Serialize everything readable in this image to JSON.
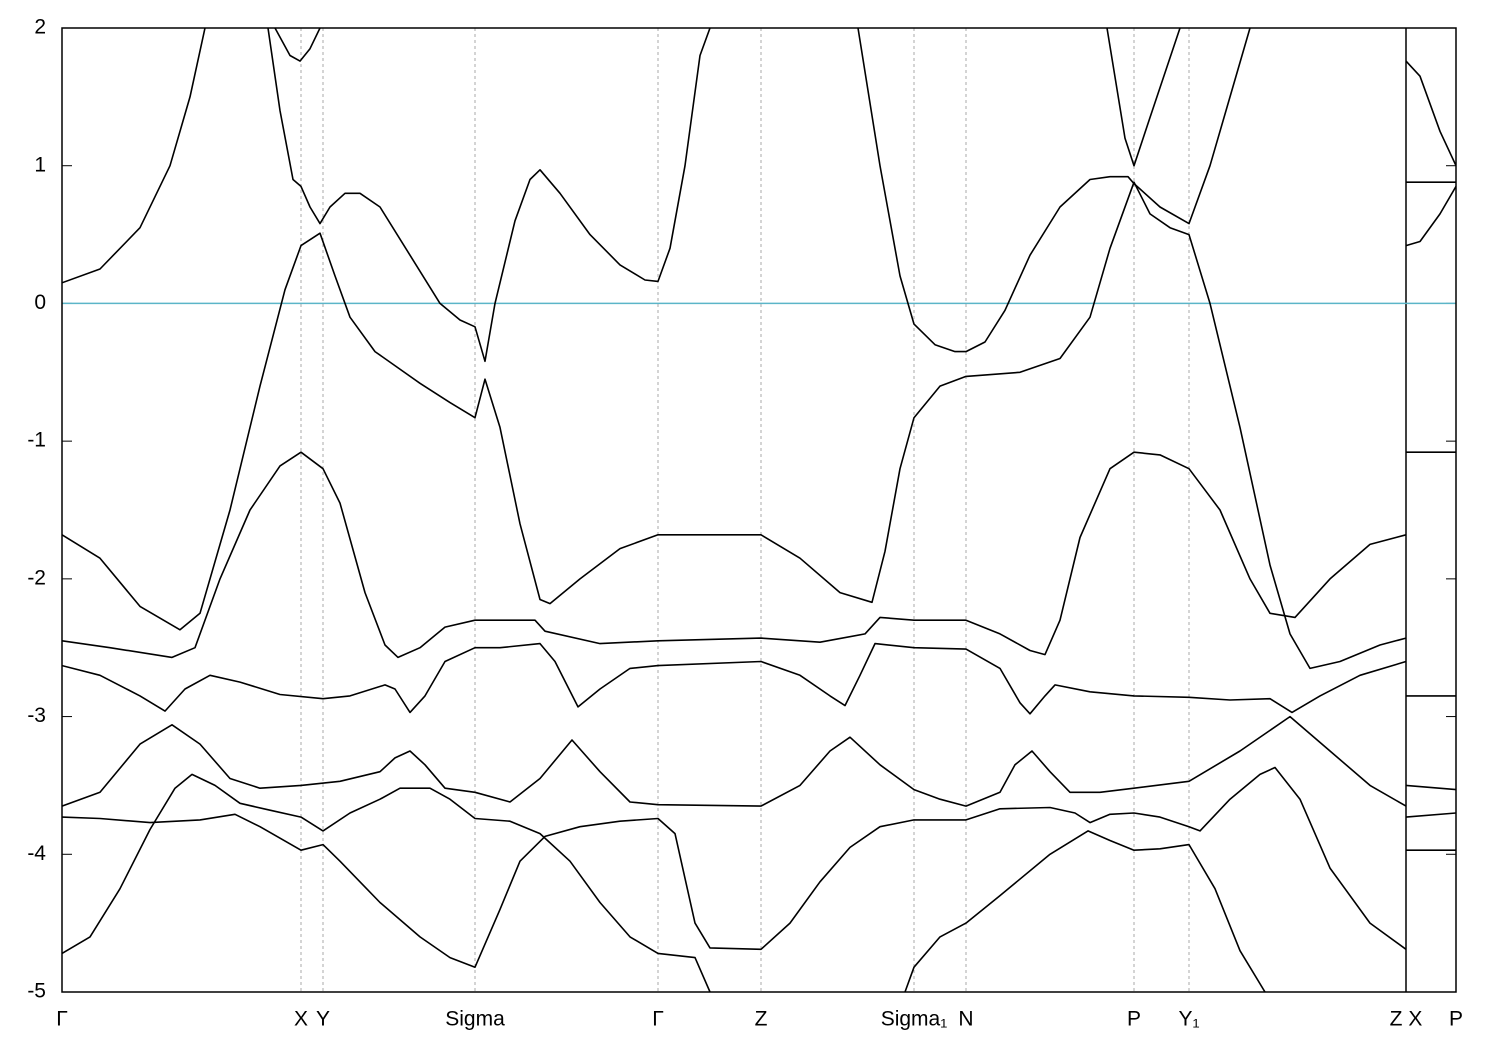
{
  "chart_data": {
    "type": "line",
    "xlim": [
      0,
      1394
    ],
    "ylim": [
      -5,
      2
    ],
    "yticks": [
      2,
      1,
      0,
      -1,
      -2,
      -3,
      -4,
      -5
    ],
    "xticks": [
      {
        "value": 0,
        "label": "Γ"
      },
      {
        "value": 239,
        "label": "X"
      },
      {
        "value": 261,
        "label": "Y"
      },
      {
        "value": 413,
        "label": "Sigma"
      },
      {
        "value": 596,
        "label": "Γ"
      },
      {
        "value": 699,
        "label": "Z"
      },
      {
        "value": 852,
        "label": "Sigma₁"
      },
      {
        "value": 904,
        "label": "N"
      },
      {
        "value": 1072,
        "label": "P"
      },
      {
        "value": 1127,
        "label": "Y₁"
      },
      {
        "value": 1344,
        "label": "Z X"
      },
      {
        "value": 1394,
        "label": "P"
      }
    ],
    "grid": true,
    "panel_break": 1344,
    "fermi_level": 0,
    "fermi_color": "#5bb5c8",
    "series": [
      {
        "color": "#000000",
        "x": [
          0,
          28,
          58,
          88,
          113,
          130,
          153,
          178,
          208,
          239,
          261,
          288,
          318,
          338,
          368,
          388,
          413,
          448,
          478,
          508,
          538,
          568,
          596,
          633,
          648,
          null,
          843,
          852,
          878,
          904,
          938,
          988,
          1026,
          1048,
          1072,
          1098,
          1127,
          1153,
          1178,
          1203
        ],
        "values": [
          -4.72,
          -4.6,
          -4.25,
          -3.82,
          -3.52,
          -3.42,
          -3.5,
          -3.63,
          -3.68,
          -3.73,
          -3.83,
          -3.7,
          -3.6,
          -3.52,
          -3.52,
          -3.6,
          -3.74,
          -3.76,
          -3.85,
          -4.05,
          -4.35,
          -4.6,
          -4.72,
          -4.75,
          -5.0,
          null,
          -5.0,
          -4.82,
          -4.6,
          -4.5,
          -4.3,
          -4.0,
          -3.83,
          -3.9,
          -3.97,
          -3.96,
          -3.93,
          -4.25,
          -4.7,
          -5.0
        ]
      },
      {
        "color": "#000000",
        "x": [
          0,
          38,
          88,
          138,
          173,
          198,
          239,
          261,
          278,
          318,
          358,
          388,
          413,
          438,
          458,
          483,
          518,
          558,
          596,
          613,
          633,
          648,
          699,
          728,
          758,
          788,
          818,
          852,
          904,
          938,
          988,
          1013,
          1028,
          1048,
          1072,
          1098,
          1127,
          1138,
          1168,
          1198,
          1213,
          1238,
          1268,
          1308,
          1344
        ],
        "values": [
          -3.73,
          -3.74,
          -3.77,
          -3.75,
          -3.71,
          -3.8,
          -3.97,
          -3.93,
          -4.05,
          -4.35,
          -4.6,
          -4.75,
          -4.82,
          -4.4,
          -4.05,
          -3.87,
          -3.8,
          -3.76,
          -3.74,
          -3.85,
          -4.5,
          -4.68,
          -4.69,
          -4.5,
          -4.2,
          -3.95,
          -3.8,
          -3.75,
          -3.75,
          -3.67,
          -3.66,
          -3.7,
          -3.77,
          -3.71,
          -3.7,
          -3.73,
          -3.8,
          -3.83,
          -3.6,
          -3.42,
          -3.37,
          -3.6,
          -4.1,
          -4.5,
          -4.69
        ]
      },
      {
        "color": "#000000",
        "x": [
          0,
          38,
          78,
          110,
          138,
          168,
          198,
          239,
          278,
          318,
          333,
          348,
          363,
          383,
          413,
          448,
          478,
          510,
          538,
          568,
          596,
          699,
          738,
          768,
          788,
          818,
          852,
          878,
          904,
          938,
          953,
          970,
          988,
          1008,
          1038,
          1072,
          1127,
          1178,
          1228,
          1268,
          1308,
          1344
        ],
        "values": [
          -3.65,
          -3.55,
          -3.2,
          -3.06,
          -3.2,
          -3.45,
          -3.52,
          -3.5,
          -3.47,
          -3.4,
          -3.3,
          -3.25,
          -3.35,
          -3.52,
          -3.55,
          -3.62,
          -3.45,
          -3.17,
          -3.4,
          -3.62,
          -3.64,
          -3.65,
          -3.5,
          -3.25,
          -3.15,
          -3.35,
          -3.53,
          -3.6,
          -3.65,
          -3.55,
          -3.35,
          -3.25,
          -3.4,
          -3.55,
          -3.55,
          -3.52,
          -3.47,
          -3.25,
          -3.0,
          -3.25,
          -3.5,
          -3.65
        ]
      },
      {
        "color": "#000000",
        "x": [
          0,
          38,
          78,
          103,
          123,
          148,
          178,
          218,
          261,
          288,
          323,
          333,
          348,
          363,
          383,
          413,
          438,
          478,
          493,
          516,
          538,
          568,
          596,
          699,
          738,
          768,
          783,
          798,
          813,
          852,
          904,
          938,
          958,
          968,
          983,
          993,
          1028,
          1072,
          1127,
          1168,
          1208,
          1230,
          1258,
          1298,
          1344
        ],
        "values": [
          -2.63,
          -2.7,
          -2.85,
          -2.96,
          -2.8,
          -2.7,
          -2.75,
          -2.84,
          -2.87,
          -2.85,
          -2.77,
          -2.8,
          -2.97,
          -2.85,
          -2.6,
          -2.5,
          -2.5,
          -2.47,
          -2.6,
          -2.93,
          -2.8,
          -2.65,
          -2.63,
          -2.6,
          -2.7,
          -2.85,
          -2.92,
          -2.7,
          -2.47,
          -2.5,
          -2.51,
          -2.65,
          -2.9,
          -2.98,
          -2.85,
          -2.77,
          -2.82,
          -2.85,
          -2.86,
          -2.88,
          -2.87,
          -2.97,
          -2.85,
          -2.7,
          -2.6
        ]
      },
      {
        "color": "#000000",
        "x": [
          0,
          48,
          110,
          133,
          158,
          188,
          218,
          239,
          261,
          278,
          303,
          323,
          336,
          358,
          383,
          413,
          473,
          483,
          538,
          596,
          699,
          758,
          803,
          818,
          852,
          904,
          938,
          968,
          983,
          998,
          1018,
          1048,
          1072,
          1098,
          1127,
          1158,
          1188,
          1208,
          1233,
          1268,
          1308,
          1344
        ],
        "values": [
          -2.45,
          -2.5,
          -2.57,
          -2.5,
          -2.0,
          -1.5,
          -1.18,
          -1.08,
          -1.2,
          -1.45,
          -2.1,
          -2.48,
          -2.57,
          -2.5,
          -2.35,
          -2.3,
          -2.3,
          -2.38,
          -2.47,
          -2.45,
          -2.43,
          -2.46,
          -2.4,
          -2.28,
          -2.3,
          -2.3,
          -2.4,
          -2.52,
          -2.55,
          -2.3,
          -1.7,
          -1.2,
          -1.08,
          -1.1,
          -1.2,
          -1.5,
          -2.0,
          -2.25,
          -2.28,
          -2.0,
          -1.75,
          -1.68
        ]
      },
      {
        "color": "#000000",
        "x": [
          0,
          38,
          78,
          118,
          138,
          168,
          198,
          223,
          239,
          258,
          273,
          288,
          313,
          358,
          388,
          413,
          423,
          438,
          458,
          478,
          488,
          518,
          558,
          596,
          699,
          738,
          778,
          810,
          823,
          838,
          852,
          878,
          904,
          958,
          998,
          1028,
          1048,
          1072,
          1088,
          1108,
          1127,
          1148,
          1178,
          1208,
          1228,
          1248,
          1278,
          1318,
          1344
        ],
        "values": [
          -1.68,
          -1.85,
          -2.2,
          -2.37,
          -2.25,
          -1.5,
          -0.6,
          0.1,
          0.42,
          0.51,
          0.2,
          -0.1,
          -0.35,
          -0.58,
          -0.72,
          -0.83,
          -0.55,
          -0.9,
          -1.6,
          -2.15,
          -2.18,
          -2.0,
          -1.78,
          -1.68,
          -1.68,
          -1.85,
          -2.1,
          -2.17,
          -1.8,
          -1.2,
          -0.83,
          -0.6,
          -0.53,
          -0.5,
          -0.4,
          -0.1,
          0.4,
          0.88,
          0.65,
          0.55,
          0.5,
          0.0,
          -0.9,
          -1.9,
          -2.4,
          -2.65,
          -2.6,
          -2.48,
          -2.43
        ]
      },
      {
        "color": "#000000",
        "x": [
          0,
          38,
          78,
          108,
          128,
          143,
          null,
          206,
          218,
          231,
          239,
          248,
          258,
          268,
          283,
          298,
          318,
          348,
          378,
          398,
          413,
          423,
          433,
          453,
          468,
          478,
          498,
          528,
          558,
          583,
          596,
          608,
          623,
          638,
          648,
          null,
          796,
          818,
          838,
          852,
          873,
          893,
          904,
          923,
          943,
          968,
          998,
          1028,
          1048,
          1066,
          1072,
          1098,
          1127,
          1148,
          1168,
          1188
        ],
        "values": [
          0.15,
          0.25,
          0.55,
          1.0,
          1.5,
          2.0,
          null,
          2.0,
          1.4,
          0.9,
          0.85,
          0.7,
          0.58,
          0.7,
          0.8,
          0.8,
          0.7,
          0.35,
          0.0,
          -0.12,
          -0.17,
          -0.42,
          0.0,
          0.6,
          0.9,
          0.97,
          0.8,
          0.5,
          0.28,
          0.17,
          0.16,
          0.4,
          1.0,
          1.8,
          2.0,
          null,
          2.0,
          1.0,
          0.2,
          -0.15,
          -0.3,
          -0.35,
          -0.35,
          -0.28,
          -0.05,
          0.35,
          0.7,
          0.9,
          0.92,
          0.92,
          0.87,
          0.7,
          0.58,
          1.0,
          1.5,
          2.0
        ]
      },
      {
        "color": "#000000",
        "x": [
          213,
          228,
          238,
          248,
          258,
          null,
          1045,
          1063,
          1072,
          1088,
          1118
        ],
        "values": [
          2.0,
          1.8,
          1.76,
          1.85,
          2.0,
          null,
          2.0,
          1.2,
          1.0,
          1.35,
          2.0
        ]
      },
      {
        "color": "#000000",
        "x": [
          1344,
          1358,
          1378,
          1394,
          null,
          1344,
          1394,
          null,
          1344,
          1358,
          1378,
          1394,
          null,
          1344,
          1394,
          null,
          1344,
          1394,
          null,
          1344,
          1394,
          null,
          1344,
          1394,
          null,
          1344,
          1394
        ],
        "values": [
          1.76,
          1.65,
          1.25,
          1.0,
          null,
          0.88,
          0.88,
          null,
          0.42,
          0.45,
          0.65,
          0.85,
          null,
          -1.08,
          -1.08,
          null,
          -2.85,
          -2.85,
          null,
          -3.5,
          -3.53,
          null,
          -3.73,
          -3.7,
          null,
          -3.97,
          -3.97
        ]
      }
    ]
  }
}
